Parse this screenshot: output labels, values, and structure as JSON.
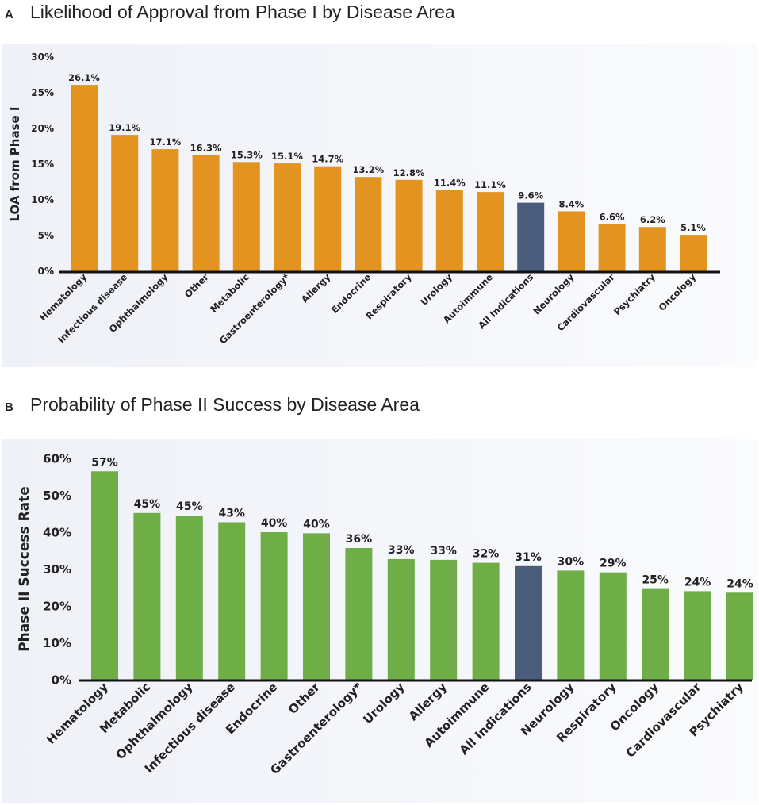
{
  "colors": {
    "orange": "#e39420",
    "green": "#6fae46",
    "highlight": "#4a5d7c",
    "axis": "#111111",
    "text": "#222222"
  },
  "chart_data": [
    {
      "type": "bar",
      "panel_label": "A",
      "title": "Likelihood of Approval from Phase I by Disease Area",
      "xlabel": "",
      "ylabel": "LOA from Phase I",
      "ylim": [
        0,
        30
      ],
      "y_ticks": [
        "0%",
        "5%",
        "10%",
        "15%",
        "20%",
        "25%",
        "30%"
      ],
      "categories": [
        "Hematology",
        "Infectious disease",
        "Ophthalmology",
        "Other",
        "Metabolic",
        "Gastroenterology*",
        "Allergy",
        "Endocrine",
        "Respiratory",
        "Urology",
        "Autoimmune",
        "All Indications",
        "Neurology",
        "Cardiovascular",
        "Psychiatry",
        "Oncology"
      ],
      "values": [
        26.1,
        19.1,
        17.1,
        16.3,
        15.3,
        15.1,
        14.7,
        13.2,
        12.8,
        11.4,
        11.1,
        9.6,
        8.4,
        6.6,
        6.2,
        5.1
      ],
      "value_labels": [
        "26.1%",
        "19.1%",
        "17.1%",
        "16.3%",
        "15.3%",
        "15.1%",
        "14.7%",
        "13.2%",
        "12.8%",
        "11.4%",
        "11.1%",
        "9.6%",
        "8.4%",
        "6.6%",
        "6.2%",
        "5.1%"
      ],
      "highlight_category": "All Indications",
      "bar_color": "#e39420",
      "highlight_color": "#4a5d7c"
    },
    {
      "type": "bar",
      "panel_label": "B",
      "title": "Probability of Phase II Success by Disease Area",
      "xlabel": "",
      "ylabel": "Phase II Success Rate",
      "ylim": [
        0,
        60
      ],
      "y_ticks": [
        "0%",
        "10%",
        "20%",
        "30%",
        "40%",
        "50%",
        "60%"
      ],
      "categories": [
        "Hematology",
        "Metabolic",
        "Ophthalmology",
        "Infectious disease",
        "Endocrine",
        "Other",
        "Gastroenterology*",
        "Urology",
        "Allergy",
        "Autoimmune",
        "All Indications",
        "Neurology",
        "Respiratory",
        "Oncology",
        "Cardiovascular",
        "Psychiatry"
      ],
      "values": [
        56.5,
        45.2,
        44.5,
        42.7,
        40.0,
        39.7,
        35.7,
        32.7,
        32.5,
        31.7,
        30.8,
        29.6,
        29.1,
        24.6,
        24.0,
        23.6
      ],
      "value_labels": [
        "57%",
        "45%",
        "45%",
        "43%",
        "40%",
        "40%",
        "36%",
        "33%",
        "33%",
        "32%",
        "31%",
        "30%",
        "29%",
        "25%",
        "24%",
        "24%"
      ],
      "highlight_category": "All Indications",
      "bar_color": "#6fae46",
      "highlight_color": "#4a5d7c"
    }
  ]
}
